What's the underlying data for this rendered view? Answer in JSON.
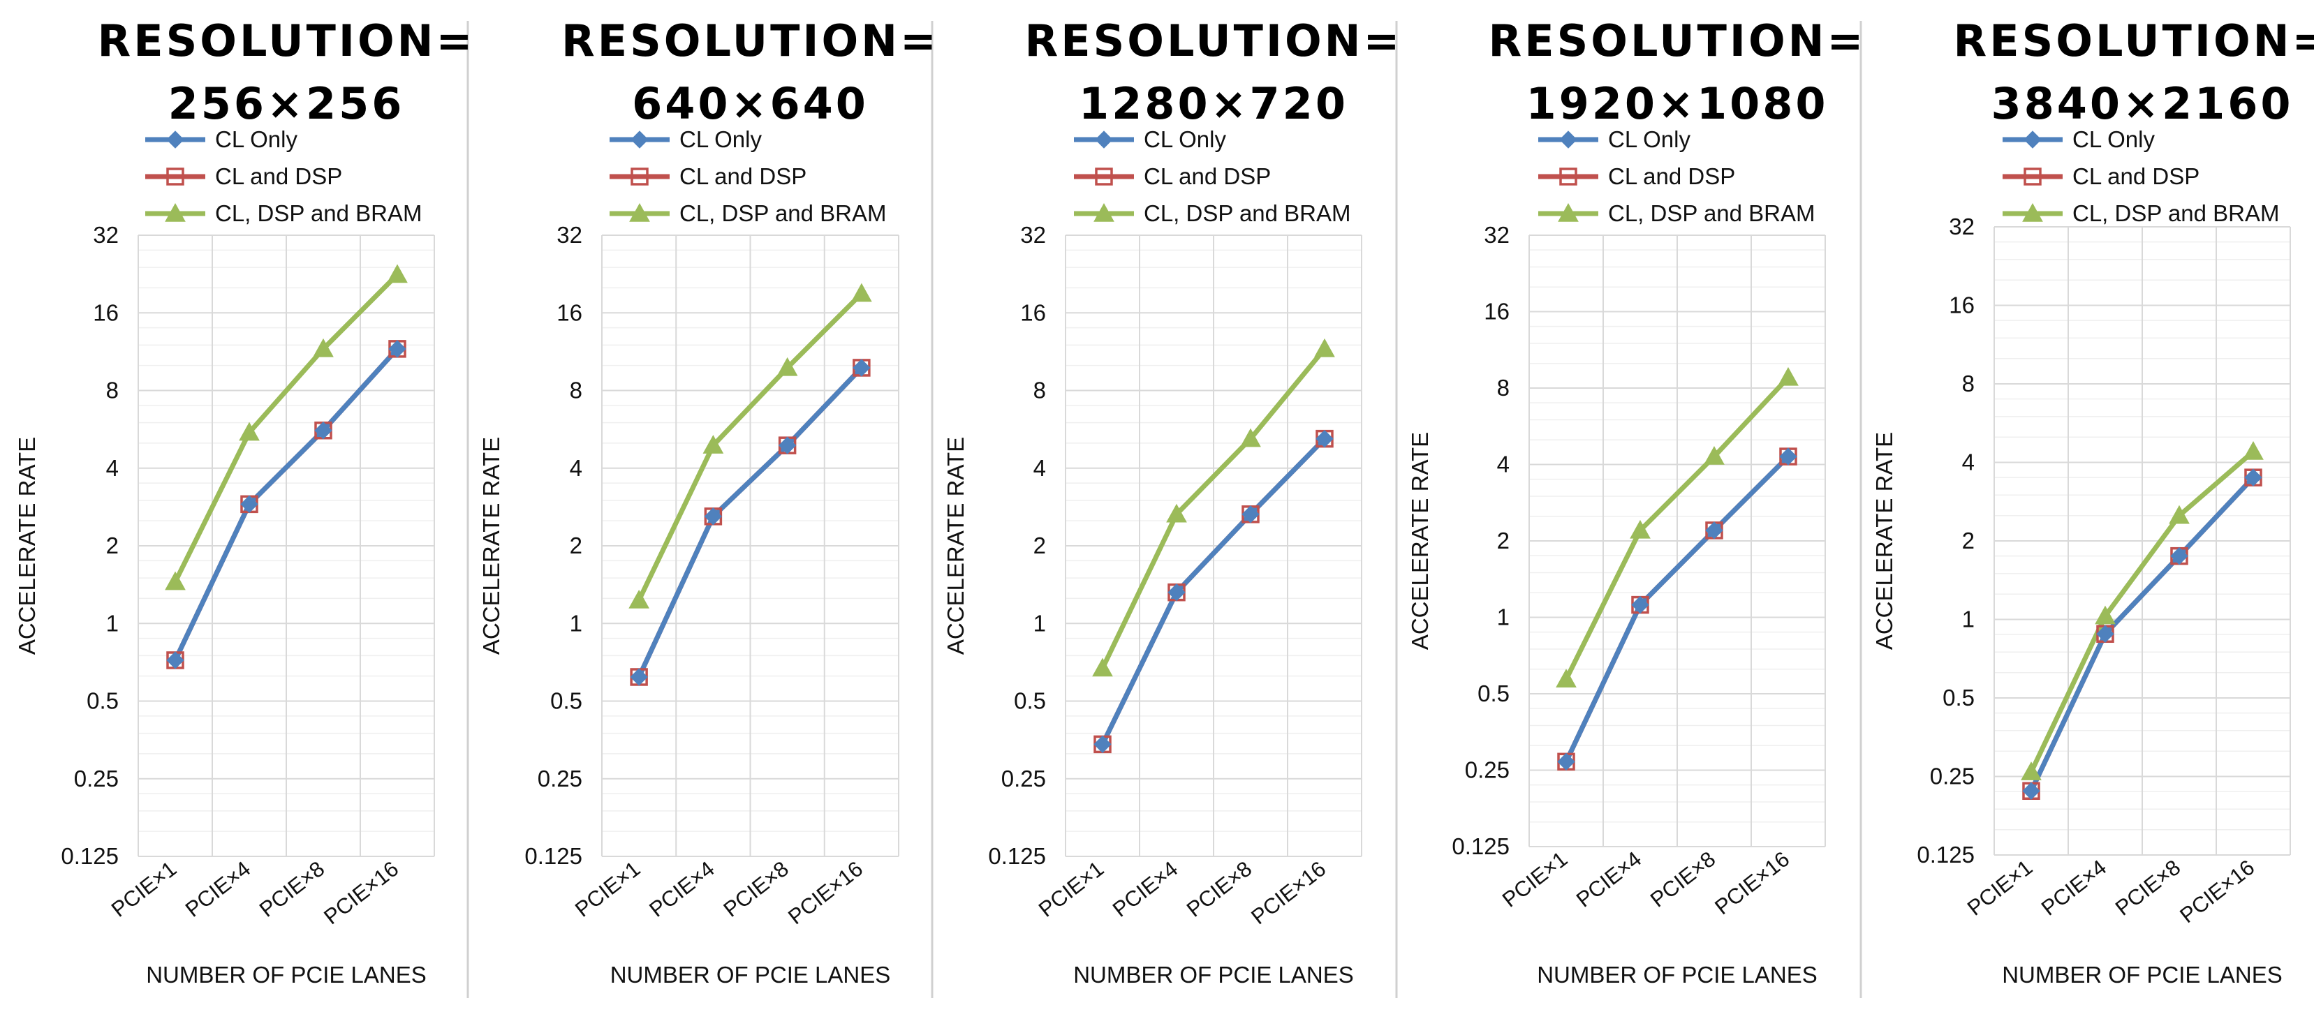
{
  "colors": {
    "cl_only": "#4f81bd",
    "cl_dsp": "#c0504d",
    "cl_dsp_bram": "#9bbb59",
    "grid_major": "#d9d9d9",
    "grid_minor": "#efefef",
    "separator": "#d0d0d0"
  },
  "chart_data": [
    {
      "type": "line",
      "yscale": "log2",
      "title_line1": "RESOLUTION=",
      "title_line2": "256×256",
      "xlabel": "NUMBER OF PCIE LANES",
      "ylabel": "ACCELERATE RATE",
      "categories": [
        "PCIE×1",
        "PCIE×4",
        "PCIE×8",
        "PCIE×16"
      ],
      "yticks": [
        "0.125",
        "0.25",
        "0.5",
        "1",
        "2",
        "4",
        "8",
        "16",
        "32"
      ],
      "ylim": [
        0.125,
        32
      ],
      "series": [
        {
          "name": "CL Only",
          "marker": "diamond",
          "values": [
            0.72,
            2.9,
            5.6,
            11.6
          ]
        },
        {
          "name": "CL and DSP",
          "marker": "square",
          "values": [
            0.72,
            2.9,
            5.6,
            11.6
          ]
        },
        {
          "name": "CL, DSP and BRAM",
          "marker": "triangle",
          "values": [
            1.45,
            5.5,
            11.6,
            22.5
          ]
        }
      ]
    },
    {
      "type": "line",
      "yscale": "log2",
      "title_line1": "RESOLUTION=",
      "title_line2": "640×640",
      "xlabel": "NUMBER OF PCIE LANES",
      "ylabel": "ACCELERATE RATE",
      "categories": [
        "PCIE×1",
        "PCIE×4",
        "PCIE×8",
        "PCIE×16"
      ],
      "yticks": [
        "0.125",
        "0.25",
        "0.5",
        "1",
        "2",
        "4",
        "8",
        "16",
        "32"
      ],
      "ylim": [
        0.125,
        32
      ],
      "series": [
        {
          "name": "CL Only",
          "marker": "diamond",
          "values": [
            0.62,
            2.6,
            4.9,
            9.8
          ]
        },
        {
          "name": "CL and DSP",
          "marker": "square",
          "values": [
            0.62,
            2.6,
            4.9,
            9.8
          ]
        },
        {
          "name": "CL, DSP and BRAM",
          "marker": "triangle",
          "values": [
            1.23,
            4.9,
            9.8,
            19.0
          ]
        }
      ]
    },
    {
      "type": "line",
      "yscale": "log2",
      "title_line1": "RESOLUTION=",
      "title_line2": "1280×720",
      "xlabel": "NUMBER OF PCIE LANES",
      "ylabel": "ACCELERATE RATE",
      "categories": [
        "PCIE×1",
        "PCIE×4",
        "PCIE×8",
        "PCIE×16"
      ],
      "yticks": [
        "0.125",
        "0.25",
        "0.5",
        "1",
        "2",
        "4",
        "8",
        "16",
        "32"
      ],
      "ylim": [
        0.125,
        32
      ],
      "series": [
        {
          "name": "CL Only",
          "marker": "diamond",
          "values": [
            0.34,
            1.32,
            2.65,
            5.2
          ]
        },
        {
          "name": "CL and DSP",
          "marker": "square",
          "values": [
            0.34,
            1.32,
            2.65,
            5.2
          ]
        },
        {
          "name": "CL, DSP and BRAM",
          "marker": "triangle",
          "values": [
            0.67,
            2.65,
            5.2,
            11.6
          ]
        }
      ]
    },
    {
      "type": "line",
      "yscale": "log2",
      "title_line1": "RESOLUTION=",
      "title_line2": "1920×1080",
      "xlabel": "NUMBER OF PCIE LANES",
      "ylabel": "ACCELERATE RATE",
      "categories": [
        "PCIE×1",
        "PCIE×4",
        "PCIE×8",
        "PCIE×16"
      ],
      "yticks": [
        "0.125",
        "0.25",
        "0.5",
        "1",
        "2",
        "4",
        "8",
        "16",
        "32"
      ],
      "ylim": [
        0.125,
        32
      ],
      "series": [
        {
          "name": "CL Only",
          "marker": "diamond",
          "values": [
            0.27,
            1.12,
            2.2,
            4.3
          ]
        },
        {
          "name": "CL and DSP",
          "marker": "square",
          "values": [
            0.27,
            1.12,
            2.2,
            4.3
          ]
        },
        {
          "name": "CL, DSP and BRAM",
          "marker": "triangle",
          "values": [
            0.57,
            2.2,
            4.3,
            8.8
          ]
        }
      ]
    },
    {
      "type": "line",
      "yscale": "log2",
      "title_line1": "RESOLUTION=",
      "title_line2": "3840×2160",
      "xlabel": "NUMBER OF PCIE LANES",
      "ylabel": "ACCELERATE RATE",
      "categories": [
        "PCIE×1",
        "PCIE×4",
        "PCIE×8",
        "PCIE×16"
      ],
      "yticks": [
        "0.125",
        "0.25",
        "0.5",
        "1",
        "2",
        "4",
        "8",
        "16",
        "32"
      ],
      "ylim": [
        0.125,
        32
      ],
      "series": [
        {
          "name": "CL Only",
          "marker": "diamond",
          "values": [
            0.22,
            0.88,
            1.75,
            3.5
          ]
        },
        {
          "name": "CL and DSP",
          "marker": "square",
          "values": [
            0.22,
            0.88,
            1.75,
            3.5
          ]
        },
        {
          "name": "CL, DSP and BRAM",
          "marker": "triangle",
          "values": [
            0.26,
            1.03,
            2.5,
            4.4
          ]
        }
      ]
    }
  ]
}
